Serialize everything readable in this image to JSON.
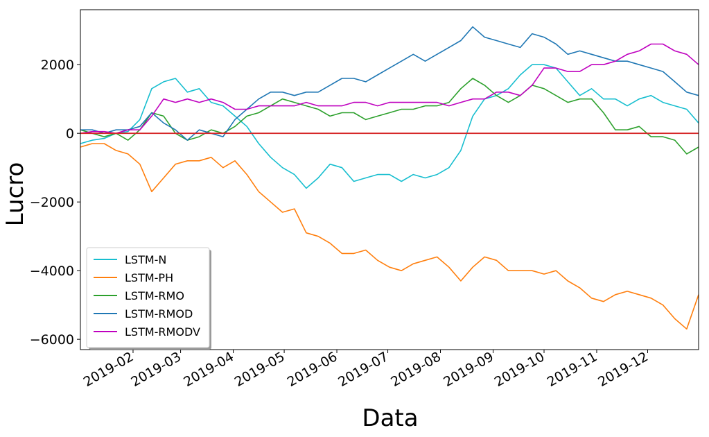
{
  "chart_data": {
    "type": "line",
    "title": "",
    "xlabel": "Data",
    "ylabel": "Lucro",
    "x_tick_labels": [
      "2019-02",
      "2019-03",
      "2019-04",
      "2019-05",
      "2019-06",
      "2019-07",
      "2019-08",
      "2019-09",
      "2019-10",
      "2019-11",
      "2019-12"
    ],
    "y_tick_labels": [
      "−6000",
      "−4000",
      "−2000",
      "0",
      "2000"
    ],
    "y_ticks": [
      -6000,
      -4000,
      -2000,
      0,
      2000
    ],
    "xlim": [
      "2019-01-01",
      "2019-12-31"
    ],
    "ylim": [
      -6300,
      3600
    ],
    "grid": false,
    "legend_position": "lower-left",
    "reference_line": {
      "y": 0,
      "color": "#d62728"
    },
    "x": [
      "2019-01-01",
      "2019-01-08",
      "2019-01-15",
      "2019-01-22",
      "2019-01-29",
      "2019-02-05",
      "2019-02-12",
      "2019-02-19",
      "2019-02-26",
      "2019-03-05",
      "2019-03-12",
      "2019-03-19",
      "2019-03-26",
      "2019-04-02",
      "2019-04-09",
      "2019-04-16",
      "2019-04-23",
      "2019-04-30",
      "2019-05-07",
      "2019-05-14",
      "2019-05-21",
      "2019-05-28",
      "2019-06-04",
      "2019-06-11",
      "2019-06-18",
      "2019-06-25",
      "2019-07-02",
      "2019-07-09",
      "2019-07-16",
      "2019-07-23",
      "2019-07-30",
      "2019-08-06",
      "2019-08-13",
      "2019-08-20",
      "2019-08-27",
      "2019-09-03",
      "2019-09-10",
      "2019-09-17",
      "2019-09-24",
      "2019-10-01",
      "2019-10-08",
      "2019-10-15",
      "2019-10-22",
      "2019-10-29",
      "2019-11-05",
      "2019-11-12",
      "2019-11-19",
      "2019-11-26",
      "2019-12-03",
      "2019-12-10",
      "2019-12-17",
      "2019-12-24",
      "2019-12-31"
    ],
    "series": [
      {
        "name": "LSTM-N",
        "color": "#17becf",
        "values": [
          -300,
          -200,
          -150,
          0,
          50,
          400,
          1300,
          1500,
          1600,
          1200,
          1300,
          900,
          800,
          500,
          200,
          -300,
          -700,
          -1000,
          -1200,
          -1600,
          -1300,
          -900,
          -1000,
          -1400,
          -1300,
          -1200,
          -1200,
          -1400,
          -1200,
          -1300,
          -1200,
          -1000,
          -500,
          500,
          1000,
          1100,
          1300,
          1700,
          2000,
          2000,
          1900,
          1500,
          1100,
          1300,
          1000,
          1000,
          800,
          1000,
          1100,
          900,
          800,
          700,
          300
        ]
      },
      {
        "name": "LSTM-PH",
        "color": "#ff7f0e",
        "values": [
          -400,
          -300,
          -300,
          -500,
          -600,
          -900,
          -1700,
          -1300,
          -900,
          -800,
          -800,
          -700,
          -1000,
          -800,
          -1200,
          -1700,
          -2000,
          -2300,
          -2200,
          -2900,
          -3000,
          -3200,
          -3500,
          -3500,
          -3400,
          -3700,
          -3900,
          -4000,
          -3800,
          -3700,
          -3600,
          -3900,
          -4300,
          -3900,
          -3600,
          -3700,
          -4000,
          -4000,
          -4000,
          -4100,
          -4000,
          -4300,
          -4500,
          -4800,
          -4900,
          -4700,
          -4600,
          -4700,
          -4800,
          -5000,
          -5400,
          -5700,
          -4700
        ]
      },
      {
        "name": "LSTM-RMO",
        "color": "#2ca02c",
        "values": [
          100,
          0,
          -100,
          0,
          -200,
          100,
          600,
          500,
          0,
          -200,
          -100,
          100,
          0,
          200,
          500,
          600,
          800,
          1000,
          900,
          800,
          700,
          500,
          600,
          600,
          400,
          500,
          600,
          700,
          700,
          800,
          800,
          900,
          1300,
          1600,
          1400,
          1100,
          900,
          1100,
          1400,
          1300,
          1100,
          900,
          1000,
          1000,
          600,
          100,
          100,
          200,
          -100,
          -100,
          -200,
          -600,
          -400
        ]
      },
      {
        "name": "LSTM-RMOD",
        "color": "#1f77b4",
        "values": [
          100,
          100,
          0,
          100,
          100,
          200,
          600,
          300,
          100,
          -200,
          100,
          0,
          -100,
          400,
          700,
          1000,
          1200,
          1200,
          1100,
          1200,
          1200,
          1400,
          1600,
          1600,
          1500,
          1700,
          1900,
          2100,
          2300,
          2100,
          2300,
          2500,
          2700,
          3100,
          2800,
          2700,
          2600,
          2500,
          2900,
          2800,
          2600,
          2300,
          2400,
          2300,
          2200,
          2100,
          2100,
          2000,
          1900,
          1800,
          1500,
          1200,
          1100
        ]
      },
      {
        "name": "LSTM-RMODV",
        "color": "#bf00bf",
        "values": [
          0,
          50,
          50,
          0,
          100,
          100,
          500,
          1000,
          900,
          1000,
          900,
          1000,
          900,
          700,
          700,
          800,
          800,
          800,
          800,
          900,
          800,
          800,
          800,
          900,
          900,
          800,
          900,
          900,
          900,
          900,
          900,
          800,
          900,
          1000,
          1000,
          1200,
          1200,
          1100,
          1400,
          1900,
          1900,
          1800,
          1800,
          2000,
          2000,
          2100,
          2300,
          2400,
          2600,
          2600,
          2400,
          2300,
          2000
        ]
      }
    ]
  }
}
